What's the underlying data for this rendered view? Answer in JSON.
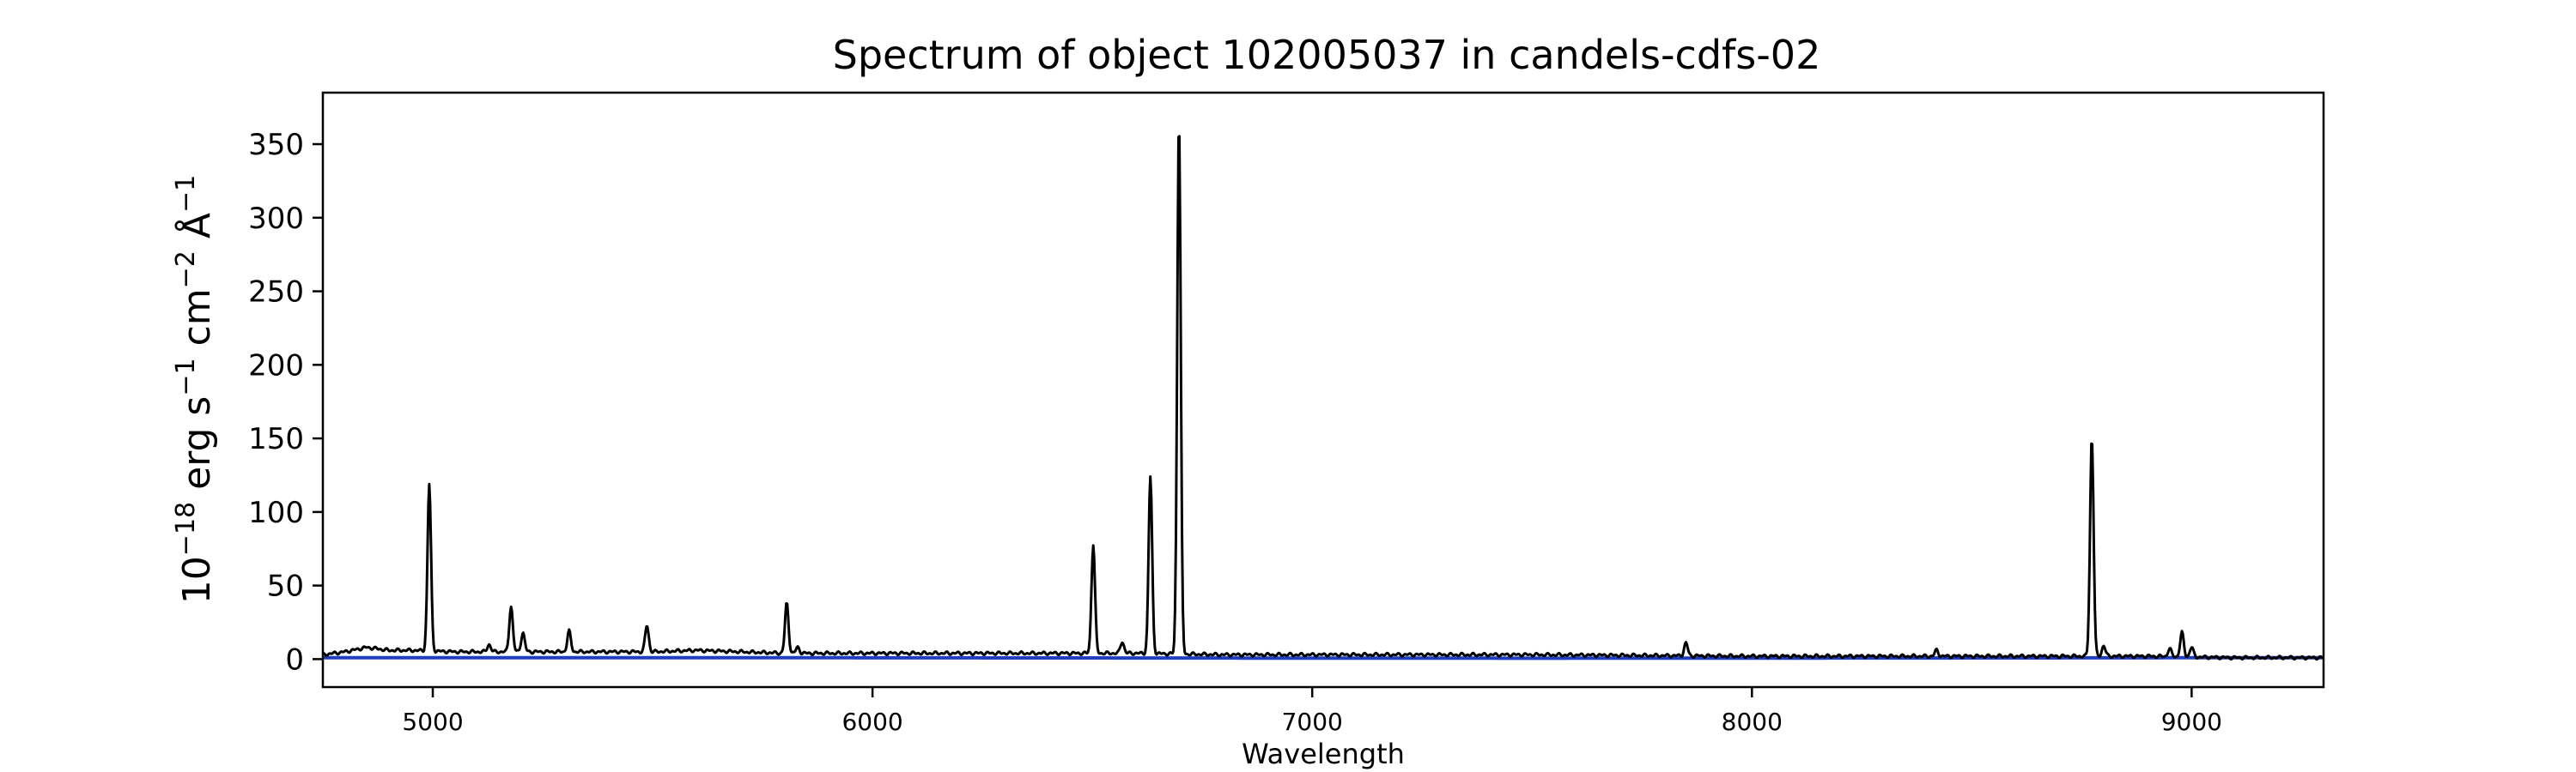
{
  "chart_data": {
    "type": "line",
    "title": "Spectrum of object 102005037 in candels-cdfs-02",
    "xlabel": "Wavelength",
    "ylabel_parts": [
      "10",
      "−18",
      " erg s",
      "−1",
      " cm",
      "−2",
      " Å",
      "−1"
    ],
    "xlim": [
      4750,
      9300
    ],
    "ylim": [
      -19,
      385
    ],
    "xticks": [
      5000,
      6000,
      7000,
      8000,
      9000
    ],
    "yticks": [
      0,
      50,
      100,
      150,
      200,
      250,
      300,
      350
    ],
    "grid": false,
    "colors": {
      "flux": "#000000",
      "error": "#1f3fbf",
      "axes": "#000000"
    },
    "continuum": [
      [
        4750,
        3
      ],
      [
        4800,
        5
      ],
      [
        4850,
        8
      ],
      [
        4900,
        6
      ],
      [
        4950,
        6
      ],
      [
        5050,
        5
      ],
      [
        5200,
        5
      ],
      [
        5300,
        5
      ],
      [
        5400,
        5
      ],
      [
        5500,
        5
      ],
      [
        5600,
        6
      ],
      [
        5700,
        5
      ],
      [
        5800,
        4
      ],
      [
        5900,
        4
      ],
      [
        6000,
        4
      ],
      [
        6200,
        4
      ],
      [
        6400,
        4
      ],
      [
        6600,
        4
      ],
      [
        6800,
        3
      ],
      [
        7000,
        3
      ],
      [
        7500,
        3
      ],
      [
        8000,
        2
      ],
      [
        8500,
        2
      ],
      [
        8700,
        2
      ],
      [
        8900,
        2
      ],
      [
        9100,
        1
      ],
      [
        9300,
        1
      ]
    ],
    "lines": [
      {
        "x": 4992,
        "peak": 119
      },
      {
        "x": 5128,
        "peak": 10
      },
      {
        "x": 5178,
        "peak": 36
      },
      {
        "x": 5205,
        "peak": 18
      },
      {
        "x": 5310,
        "peak": 19
      },
      {
        "x": 5487,
        "peak": 23
      },
      {
        "x": 5805,
        "peak": 38
      },
      {
        "x": 5830,
        "peak": 8
      },
      {
        "x": 6502,
        "peak": 78
      },
      {
        "x": 6568,
        "peak": 12
      },
      {
        "x": 6632,
        "peak": 124
      },
      {
        "x": 6697,
        "peak": 367
      },
      {
        "x": 7850,
        "peak": 11
      },
      {
        "x": 8420,
        "peak": 6
      },
      {
        "x": 8773,
        "peak": 151
      },
      {
        "x": 8800,
        "peak": 9
      },
      {
        "x": 8950,
        "peak": 7
      },
      {
        "x": 8978,
        "peak": 18
      },
      {
        "x": 9000,
        "peak": 8
      }
    ],
    "error": [
      [
        4750,
        1
      ],
      [
        5500,
        1
      ],
      [
        6500,
        0.8
      ],
      [
        7500,
        0.6
      ],
      [
        8500,
        0.8
      ],
      [
        9300,
        1
      ]
    ]
  }
}
